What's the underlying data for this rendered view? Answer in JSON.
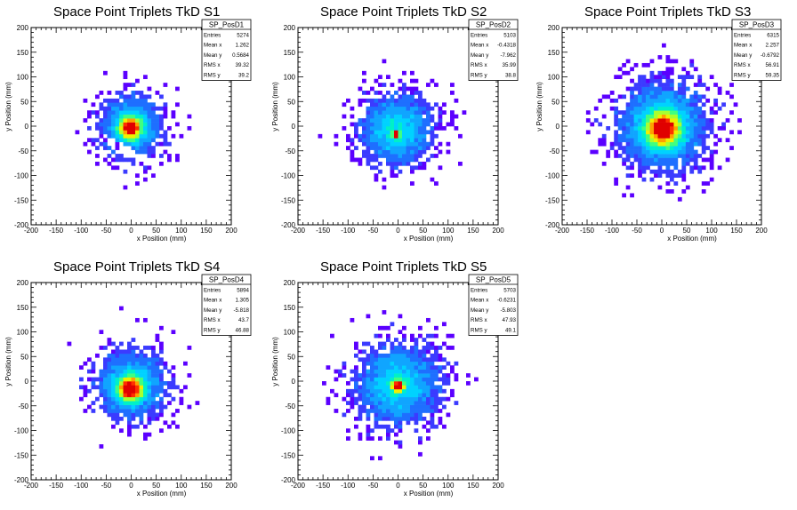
{
  "chart_data": [
    {
      "type": "heatmap",
      "title": "Space Point Triplets TkD S1",
      "xlabel": "x Position (mm)",
      "ylabel": "y Position (mm)",
      "xlim": [
        -200,
        200
      ],
      "ylim": [
        -200,
        200
      ],
      "xticks": [
        "-200",
        "-150",
        "-100",
        "-50",
        "0",
        "50",
        "100",
        "150",
        "200"
      ],
      "yticks": [
        "-200",
        "-150",
        "-100",
        "-50",
        "0",
        "50",
        "100",
        "150",
        "200"
      ],
      "distribution": {
        "center": [
          0,
          0
        ],
        "core_sigma": 14,
        "halo_sigma": 42,
        "radius": 110,
        "peak_offset": [
          -2,
          -4
        ],
        "gap": true
      },
      "stats": {
        "name": "SP_PosD1",
        "rows": [
          {
            "label": "Entries",
            "value": "5274"
          },
          {
            "label": "Mean x",
            "value": "1.262"
          },
          {
            "label": "Mean y",
            "value": "0.5684"
          },
          {
            "label": "RMS x",
            "value": "39.32"
          },
          {
            "label": "RMS y",
            "value": "39.2"
          }
        ]
      }
    },
    {
      "type": "heatmap",
      "title": "Space Point Triplets TkD S2",
      "xlabel": "x Position (mm)",
      "ylabel": "y Position (mm)",
      "xlim": [
        -200,
        200
      ],
      "ylim": [
        -200,
        200
      ],
      "xticks": [
        "-200",
        "-150",
        "-100",
        "-50",
        "0",
        "50",
        "100",
        "150",
        "200"
      ],
      "yticks": [
        "-200",
        "-150",
        "-100",
        "-50",
        "0",
        "50",
        "100",
        "150",
        "200"
      ],
      "distribution": {
        "center": [
          -2,
          -8
        ],
        "core_sigma": 5,
        "halo_sigma": 48,
        "radius": 150,
        "peak_offset": [
          -3,
          -8
        ],
        "gap": false
      },
      "stats": {
        "name": "SP_PosD2",
        "rows": [
          {
            "label": "Entries",
            "value": "5103"
          },
          {
            "label": "Mean x",
            "value": "-0.4318"
          },
          {
            "label": "Mean y",
            "value": "-7.962"
          },
          {
            "label": "RMS x",
            "value": "35.99"
          },
          {
            "label": "RMS y",
            "value": "38.8"
          }
        ]
      }
    },
    {
      "type": "heatmap",
      "title": "Space Point Triplets TkD S3",
      "xlabel": "x Position (mm)",
      "ylabel": "y Position (mm)",
      "xlim": [
        -200,
        200
      ],
      "ylim": [
        -200,
        200
      ],
      "xticks": [
        "-200",
        "-150",
        "-100",
        "-50",
        "0",
        "50",
        "100",
        "150",
        "200"
      ],
      "yticks": [
        "-200",
        "-150",
        "-100",
        "-50",
        "0",
        "50",
        "100",
        "150",
        "200"
      ],
      "distribution": {
        "center": [
          2,
          0
        ],
        "core_sigma": 22,
        "halo_sigma": 60,
        "radius": 150,
        "peak_offset": [
          0,
          -6
        ],
        "gap": false
      },
      "stats": {
        "name": "SP_PosD3",
        "rows": [
          {
            "label": "Entries",
            "value": "6315"
          },
          {
            "label": "Mean x",
            "value": "2.257"
          },
          {
            "label": "Mean y",
            "value": "-0.6792"
          },
          {
            "label": "RMS x",
            "value": "56.91"
          },
          {
            "label": "RMS y",
            "value": "59.35"
          }
        ]
      }
    },
    {
      "type": "heatmap",
      "title": "Space Point Triplets TkD S4",
      "xlabel": "x Position (mm)",
      "ylabel": "y Position (mm)",
      "xlim": [
        -200,
        200
      ],
      "ylim": [
        -200,
        200
      ],
      "xticks": [
        "-200",
        "-150",
        "-100",
        "-50",
        "0",
        "50",
        "100",
        "150",
        "200"
      ],
      "yticks": [
        "-200",
        "-150",
        "-100",
        "-50",
        "0",
        "50",
        "100",
        "150",
        "200"
      ],
      "distribution": {
        "center": [
          0,
          -6
        ],
        "core_sigma": 16,
        "halo_sigma": 46,
        "radius": 140,
        "peak_offset": [
          -2,
          -10
        ],
        "gap": false
      },
      "stats": {
        "name": "SP_PosD4",
        "rows": [
          {
            "label": "Entries",
            "value": "5894"
          },
          {
            "label": "Mean x",
            "value": "1.305"
          },
          {
            "label": "Mean y",
            "value": "-5.818"
          },
          {
            "label": "RMS x",
            "value": "43.7"
          },
          {
            "label": "RMS y",
            "value": "46.88"
          }
        ]
      }
    },
    {
      "type": "heatmap",
      "title": "Space Point Triplets TkD S5",
      "xlabel": "x Position (mm)",
      "ylabel": "y Position (mm)",
      "xlim": [
        -200,
        200
      ],
      "ylim": [
        -200,
        200
      ],
      "xticks": [
        "-200",
        "-150",
        "-100",
        "-50",
        "0",
        "50",
        "100",
        "150",
        "200"
      ],
      "yticks": [
        "-200",
        "-150",
        "-100",
        "-50",
        "0",
        "50",
        "100",
        "150",
        "200"
      ],
      "distribution": {
        "center": [
          0,
          -6
        ],
        "core_sigma": 8,
        "halo_sigma": 55,
        "radius": 150,
        "peak_offset": [
          0,
          -4
        ],
        "gap": false
      },
      "stats": {
        "name": "SP_PosD5",
        "rows": [
          {
            "label": "Entries",
            "value": "5703"
          },
          {
            "label": "Mean x",
            "value": "-0.6231"
          },
          {
            "label": "Mean y",
            "value": "-5.803"
          },
          {
            "label": "RMS x",
            "value": "47.93"
          },
          {
            "label": "RMS y",
            "value": "49.1"
          }
        ]
      }
    }
  ],
  "colors": {
    "frame": "#000000",
    "background": "#ffffff",
    "palette": [
      "#5b00ff",
      "#3b3bff",
      "#1e6fff",
      "#10a5ff",
      "#00d2ff",
      "#00f0c8",
      "#40ff80",
      "#a8ff30",
      "#f0f000",
      "#ffa000",
      "#ff3000",
      "#e00000"
    ]
  }
}
